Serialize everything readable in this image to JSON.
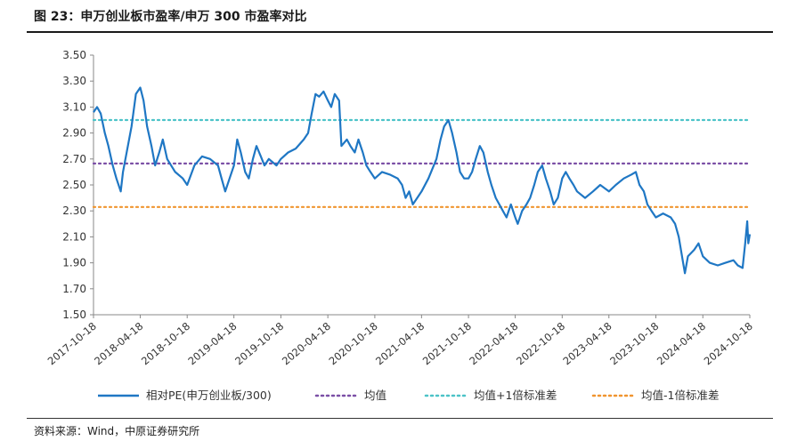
{
  "header": {
    "title": "图 23：申万创业板市盈率/申万 300 市盈率对比"
  },
  "footer": {
    "source": "资料来源：Wind，中原证券研究所"
  },
  "chart_data": {
    "type": "line",
    "title": "图 23：申万创业板市盈率/申万 300 市盈率对比",
    "xlabel": "",
    "ylabel": "",
    "ylim": [
      1.5,
      3.5
    ],
    "yticks": [
      1.5,
      1.7,
      1.9,
      2.1,
      2.3,
      2.5,
      2.7,
      2.9,
      3.1,
      3.3,
      3.5
    ],
    "ytick_labels": [
      "1.50",
      "1.70",
      "1.90",
      "2.10",
      "2.30",
      "2.50",
      "2.70",
      "2.90",
      "3.10",
      "3.30",
      "3.50"
    ],
    "xlim": [
      "2017-10-18",
      "2024-10-18"
    ],
    "xticks": [
      "2017-10-18",
      "2018-04-18",
      "2018-10-18",
      "2019-04-18",
      "2019-10-18",
      "2020-04-18",
      "2020-10-18",
      "2021-04-18",
      "2021-10-18",
      "2022-04-18",
      "2022-10-18",
      "2023-04-18",
      "2023-10-18",
      "2024-04-18",
      "2024-10-18"
    ],
    "grid": false,
    "legend_position": "bottom",
    "series": [
      {
        "name": "相对PE(申万创业板/300)",
        "color": "#1f77c4",
        "style": "solid",
        "points": [
          [
            "2017-10-18",
            3.06
          ],
          [
            "2017-11-01",
            3.1
          ],
          [
            "2017-11-15",
            3.05
          ],
          [
            "2017-12-01",
            2.9
          ],
          [
            "2017-12-15",
            2.8
          ],
          [
            "2018-01-01",
            2.65
          ],
          [
            "2018-01-15",
            2.55
          ],
          [
            "2018-02-01",
            2.45
          ],
          [
            "2018-02-10",
            2.6
          ],
          [
            "2018-03-01",
            2.8
          ],
          [
            "2018-03-15",
            2.95
          ],
          [
            "2018-04-01",
            3.2
          ],
          [
            "2018-04-18",
            3.25
          ],
          [
            "2018-05-01",
            3.15
          ],
          [
            "2018-05-15",
            2.95
          ],
          [
            "2018-06-01",
            2.8
          ],
          [
            "2018-06-15",
            2.65
          ],
          [
            "2018-07-01",
            2.75
          ],
          [
            "2018-07-15",
            2.85
          ],
          [
            "2018-08-01",
            2.7
          ],
          [
            "2018-09-01",
            2.6
          ],
          [
            "2018-10-01",
            2.55
          ],
          [
            "2018-10-18",
            2.5
          ],
          [
            "2018-11-15",
            2.65
          ],
          [
            "2018-12-15",
            2.72
          ],
          [
            "2019-01-15",
            2.7
          ],
          [
            "2019-02-15",
            2.65
          ],
          [
            "2019-03-01",
            2.55
          ],
          [
            "2019-03-15",
            2.45
          ],
          [
            "2019-04-01",
            2.55
          ],
          [
            "2019-04-18",
            2.65
          ],
          [
            "2019-05-01",
            2.85
          ],
          [
            "2019-05-15",
            2.75
          ],
          [
            "2019-06-01",
            2.6
          ],
          [
            "2019-06-15",
            2.55
          ],
          [
            "2019-07-01",
            2.7
          ],
          [
            "2019-07-15",
            2.8
          ],
          [
            "2019-08-01",
            2.72
          ],
          [
            "2019-08-15",
            2.65
          ],
          [
            "2019-09-01",
            2.7
          ],
          [
            "2019-10-01",
            2.65
          ],
          [
            "2019-10-18",
            2.7
          ],
          [
            "2019-11-15",
            2.75
          ],
          [
            "2019-12-15",
            2.78
          ],
          [
            "2020-01-15",
            2.85
          ],
          [
            "2020-02-01",
            2.9
          ],
          [
            "2020-02-15",
            3.05
          ],
          [
            "2020-03-01",
            3.2
          ],
          [
            "2020-03-15",
            3.18
          ],
          [
            "2020-04-01",
            3.22
          ],
          [
            "2020-04-18",
            3.15
          ],
          [
            "2020-05-01",
            3.1
          ],
          [
            "2020-05-15",
            3.2
          ],
          [
            "2020-06-01",
            3.15
          ],
          [
            "2020-06-10",
            2.8
          ],
          [
            "2020-07-01",
            2.85
          ],
          [
            "2020-07-15",
            2.8
          ],
          [
            "2020-08-01",
            2.75
          ],
          [
            "2020-08-15",
            2.85
          ],
          [
            "2020-09-01",
            2.75
          ],
          [
            "2020-09-15",
            2.65
          ],
          [
            "2020-10-01",
            2.6
          ],
          [
            "2020-10-18",
            2.55
          ],
          [
            "2020-11-15",
            2.6
          ],
          [
            "2020-12-15",
            2.58
          ],
          [
            "2021-01-15",
            2.55
          ],
          [
            "2021-02-01",
            2.5
          ],
          [
            "2021-02-15",
            2.4
          ],
          [
            "2021-03-01",
            2.45
          ],
          [
            "2021-03-15",
            2.35
          ],
          [
            "2021-04-01",
            2.4
          ],
          [
            "2021-04-18",
            2.45
          ],
          [
            "2021-05-15",
            2.55
          ],
          [
            "2021-06-15",
            2.7
          ],
          [
            "2021-07-01",
            2.85
          ],
          [
            "2021-07-15",
            2.95
          ],
          [
            "2021-08-01",
            3.0
          ],
          [
            "2021-08-15",
            2.9
          ],
          [
            "2021-09-01",
            2.75
          ],
          [
            "2021-09-15",
            2.6
          ],
          [
            "2021-10-01",
            2.55
          ],
          [
            "2021-10-18",
            2.55
          ],
          [
            "2021-11-01",
            2.6
          ],
          [
            "2021-11-15",
            2.7
          ],
          [
            "2021-12-01",
            2.8
          ],
          [
            "2021-12-15",
            2.75
          ],
          [
            "2022-01-01",
            2.6
          ],
          [
            "2022-01-15",
            2.5
          ],
          [
            "2022-02-01",
            2.4
          ],
          [
            "2022-02-15",
            2.35
          ],
          [
            "2022-03-01",
            2.3
          ],
          [
            "2022-03-15",
            2.25
          ],
          [
            "2022-04-01",
            2.35
          ],
          [
            "2022-04-18",
            2.25
          ],
          [
            "2022-04-28",
            2.2
          ],
          [
            "2022-05-15",
            2.3
          ],
          [
            "2022-06-01",
            2.35
          ],
          [
            "2022-06-15",
            2.4
          ],
          [
            "2022-07-01",
            2.5
          ],
          [
            "2022-07-15",
            2.6
          ],
          [
            "2022-08-01",
            2.65
          ],
          [
            "2022-08-15",
            2.55
          ],
          [
            "2022-09-01",
            2.45
          ],
          [
            "2022-09-15",
            2.35
          ],
          [
            "2022-10-01",
            2.4
          ],
          [
            "2022-10-18",
            2.55
          ],
          [
            "2022-11-01",
            2.6
          ],
          [
            "2022-11-15",
            2.55
          ],
          [
            "2022-12-01",
            2.5
          ],
          [
            "2022-12-15",
            2.45
          ],
          [
            "2023-01-15",
            2.4
          ],
          [
            "2023-02-15",
            2.45
          ],
          [
            "2023-03-15",
            2.5
          ],
          [
            "2023-04-18",
            2.45
          ],
          [
            "2023-05-15",
            2.5
          ],
          [
            "2023-06-15",
            2.55
          ],
          [
            "2023-07-15",
            2.58
          ],
          [
            "2023-08-01",
            2.6
          ],
          [
            "2023-08-15",
            2.5
          ],
          [
            "2023-09-01",
            2.45
          ],
          [
            "2023-09-15",
            2.35
          ],
          [
            "2023-10-01",
            2.3
          ],
          [
            "2023-10-18",
            2.25
          ],
          [
            "2023-11-15",
            2.28
          ],
          [
            "2023-12-15",
            2.25
          ],
          [
            "2024-01-01",
            2.2
          ],
          [
            "2024-01-15",
            2.1
          ],
          [
            "2024-02-01",
            1.9
          ],
          [
            "2024-02-08",
            1.82
          ],
          [
            "2024-02-20",
            1.95
          ],
          [
            "2024-03-15",
            2.0
          ],
          [
            "2024-04-01",
            2.05
          ],
          [
            "2024-04-18",
            1.95
          ],
          [
            "2024-05-15",
            1.9
          ],
          [
            "2024-06-15",
            1.88
          ],
          [
            "2024-07-15",
            1.9
          ],
          [
            "2024-08-15",
            1.92
          ],
          [
            "2024-09-01",
            1.88
          ],
          [
            "2024-09-20",
            1.86
          ],
          [
            "2024-09-30",
            2.05
          ],
          [
            "2024-10-08",
            2.22
          ],
          [
            "2024-10-12",
            2.05
          ],
          [
            "2024-10-18",
            2.12
          ]
        ]
      },
      {
        "name": "均值",
        "color": "#7b4fa6",
        "style": "dotted",
        "value": 2.665
      },
      {
        "name": "均值+1倍标准差",
        "color": "#4cc3c8",
        "style": "dotted",
        "value": 3.0
      },
      {
        "name": "均值-1倍标准差",
        "color": "#f0952f",
        "style": "dotted",
        "value": 2.33
      }
    ]
  }
}
